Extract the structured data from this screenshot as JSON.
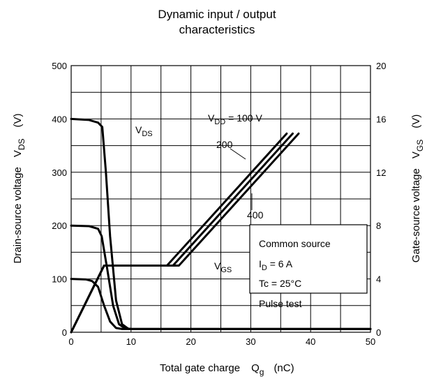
{
  "chart_data": {
    "type": "line",
    "title_line1": "Dynamic input / output",
    "title_line2": "characteristics",
    "xlabel": "Total gate charge",
    "xlabel_symbol": "Q",
    "xlabel_symbol_sub": "g",
    "xlabel_unit": "(nC)",
    "ylabel_left": "Drain-source voltage",
    "ylabel_left_symbol": "V",
    "ylabel_left_symbol_sub": "DS",
    "ylabel_left_unit": "(V)",
    "ylabel_right": "Gate-source voltage",
    "ylabel_right_symbol": "V",
    "ylabel_right_symbol_sub": "GS",
    "ylabel_right_unit": "(V)",
    "xlim": [
      0,
      50
    ],
    "ylim_left": [
      0,
      500
    ],
    "ylim_right": [
      0,
      20
    ],
    "x_ticks": [
      0,
      10,
      20,
      30,
      40,
      50
    ],
    "y_left_ticks": [
      0,
      100,
      200,
      300,
      400,
      500
    ],
    "y_right_ticks": [
      0,
      4,
      8,
      12,
      16,
      20
    ],
    "grid": true,
    "grid_x_step": 5,
    "grid_y_step": 50,
    "series": [
      {
        "axis": "left",
        "points": [
          [
            0,
            400
          ],
          [
            3,
            398
          ],
          [
            4.5,
            393
          ],
          [
            5.2,
            385
          ],
          [
            5.8,
            300
          ],
          [
            6.5,
            180
          ],
          [
            7.5,
            60
          ],
          [
            8.5,
            15
          ],
          [
            9.5,
            7
          ],
          [
            10,
            6
          ],
          [
            50,
            6
          ]
        ]
      },
      {
        "axis": "left",
        "points": [
          [
            0,
            200
          ],
          [
            3,
            199
          ],
          [
            4.5,
            194
          ],
          [
            5.1,
            180
          ],
          [
            6,
            120
          ],
          [
            7,
            50
          ],
          [
            8,
            15
          ],
          [
            9,
            7
          ],
          [
            10,
            6
          ],
          [
            50,
            6
          ]
        ]
      },
      {
        "axis": "left",
        "points": [
          [
            0,
            100
          ],
          [
            2.5,
            99
          ],
          [
            3.5,
            96
          ],
          [
            4.5,
            85
          ],
          [
            5.5,
            50
          ],
          [
            6.5,
            20
          ],
          [
            7.5,
            8
          ],
          [
            8.5,
            6
          ],
          [
            50,
            6
          ]
        ]
      },
      {
        "axis": "right",
        "points": [
          [
            0,
            0
          ],
          [
            5.5,
            5
          ],
          [
            16,
            5
          ],
          [
            36,
            14.9
          ]
        ]
      },
      {
        "axis": "right",
        "points": [
          [
            0,
            0
          ],
          [
            5.5,
            5
          ],
          [
            17,
            5
          ],
          [
            37,
            14.9
          ]
        ]
      },
      {
        "axis": "right",
        "points": [
          [
            0,
            0
          ],
          [
            5.5,
            5
          ],
          [
            18,
            5
          ],
          [
            38,
            14.9
          ]
        ]
      }
    ],
    "annotations": {
      "vds_label": "V",
      "vds_label_sub": "DS",
      "vgs_label": "V",
      "vgs_label_sub": "GS",
      "vdd_label": "V",
      "vdd_label_sub": "DD",
      "vdd_value": " = 100 V",
      "vdd_200": "200",
      "vdd_400": "400"
    },
    "legend_box": {
      "line1": "Common source",
      "line2_pre": "I",
      "line2_sub": "D",
      "line2_post": " = 6 A",
      "line3": "Tc = 25°C",
      "line4": "Pulse test"
    }
  }
}
